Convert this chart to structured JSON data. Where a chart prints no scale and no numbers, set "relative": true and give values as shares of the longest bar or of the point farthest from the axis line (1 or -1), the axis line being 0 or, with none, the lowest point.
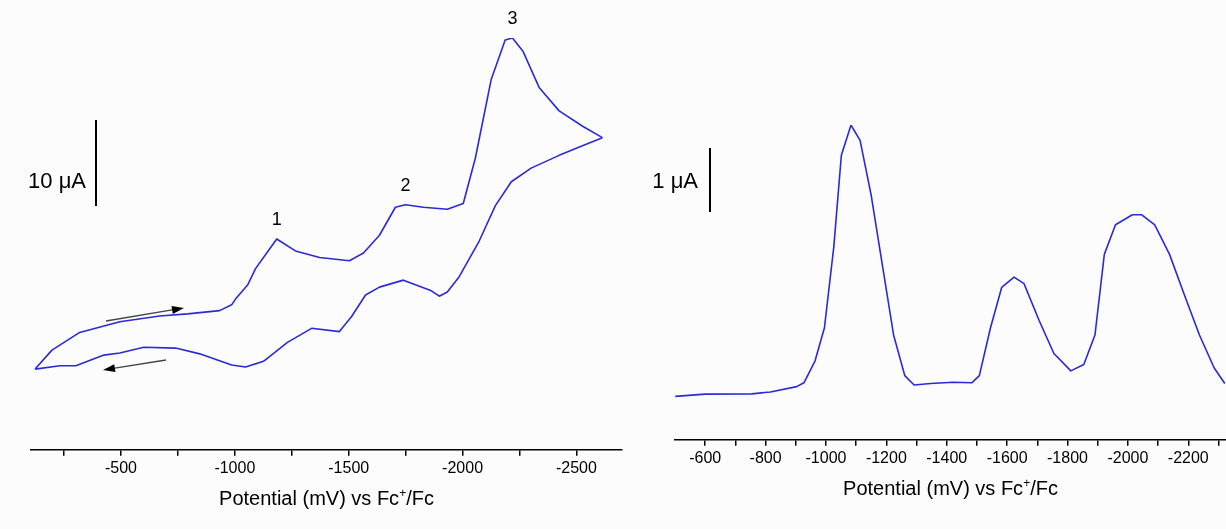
{
  "chart_data": [
    {
      "type": "line",
      "relative": true,
      "xlabel": "Potential (mV) vs Fc$^{+}$/Fc",
      "xlim": [
        -105,
        -2700
      ],
      "xticks": [
        {
          "value": -250,
          "label": null
        },
        -500,
        {
          "value": -750,
          "label": null
        },
        -1000,
        {
          "value": -1250,
          "label": null
        },
        -1500,
        {
          "value": -1750,
          "label": null
        },
        -2000,
        {
          "value": -2250,
          "label": null
        },
        -2500
      ],
      "marker": "none",
      "annotations": [
        "10 μA",
        {
          "text": "1",
          "x": -1184,
          "y": 0.512
        },
        {
          "text": "2",
          "x": -1749,
          "y": 0.595
        },
        {
          "text": "3",
          "x": -2219,
          "y": 1.0
        }
      ],
      "series": [
        {
          "color": "#2a2ad8",
          "x": [
            -123,
            -197,
            -319,
            -495,
            -670,
            -793,
            -933,
            -986,
            -1003,
            -1056,
            -1091,
            -1184,
            -1266,
            -1372,
            -1503,
            -1565,
            -1635,
            -1705,
            -1749,
            -1828,
            -1933,
            -2003,
            -2056,
            -2126,
            -2187,
            -2219,
            -2266,
            -2336,
            -2424,
            -2529,
            -2614
          ],
          "values": [
            0.196,
            0.242,
            0.285,
            0.311,
            0.325,
            0.33,
            0.338,
            0.352,
            0.366,
            0.4,
            0.44,
            0.512,
            0.483,
            0.467,
            0.459,
            0.478,
            0.521,
            0.589,
            0.595,
            0.589,
            0.584,
            0.598,
            0.708,
            0.9,
            0.995,
            1.0,
            0.967,
            0.88,
            0.823,
            0.785,
            0.758
          ]
        },
        {
          "color": "#2a2ad8",
          "x": [
            -2614,
            -2529,
            -2424,
            -2301,
            -2214,
            -2144,
            -2073,
            -1986,
            -1933,
            -1898,
            -1863,
            -1740,
            -1635,
            -1574,
            -1512,
            -1459,
            -1337,
            -1231,
            -1126,
            -1047,
            -986,
            -846,
            -740,
            -600,
            -495,
            -425,
            -302,
            -232,
            -123
          ],
          "values": [
            0.758,
            0.739,
            0.715,
            0.684,
            0.651,
            0.593,
            0.507,
            0.421,
            0.383,
            0.373,
            0.386,
            0.412,
            0.395,
            0.376,
            0.323,
            0.287,
            0.295,
            0.261,
            0.215,
            0.201,
            0.206,
            0.233,
            0.247,
            0.249,
            0.235,
            0.23,
            0.204,
            0.204,
            0.196
          ]
        }
      ]
    },
    {
      "type": "line",
      "relative": true,
      "xlabel": "Potential (mV) vs Fc$^{+}$/Fc",
      "xlim": [
        -500,
        -2325
      ],
      "xticks": [
        -600,
        {
          "value": -700,
          "label": null
        },
        -800,
        {
          "value": -900,
          "label": null
        },
        -1000,
        {
          "value": -1100,
          "label": null
        },
        -1200,
        {
          "value": -1300,
          "label": null
        },
        -1400,
        {
          "value": -1500,
          "label": null
        },
        -1600,
        {
          "value": -1700,
          "label": null
        },
        -1800,
        {
          "value": -1900,
          "label": null
        },
        -2000,
        {
          "value": -2100,
          "label": null
        },
        -2200,
        {
          "value": -2300,
          "label": null
        }
      ],
      "marker": "none",
      "annotations": [
        "1 μA"
      ],
      "series": [
        {
          "color": "#2a2ad8",
          "x": [
            -501,
            -600,
            -754,
            -816,
            -903,
            -927,
            -964,
            -995,
            -1026,
            -1051,
            -1083,
            -1113,
            -1150,
            -1187,
            -1224,
            -1261,
            -1292,
            -1347,
            -1421,
            -1483,
            -1508,
            -1545,
            -1582,
            -1623,
            -1656,
            -1706,
            -1755,
            -1811,
            -1854,
            -1891,
            -1922,
            -1959,
            -2015,
            -2045,
            -2089,
            -2138,
            -2187,
            -2237,
            -2286,
            -2321
          ],
          "values": [
            0.138,
            0.145,
            0.146,
            0.152,
            0.169,
            0.181,
            0.251,
            0.356,
            0.613,
            0.904,
            1.0,
            0.951,
            0.776,
            0.554,
            0.333,
            0.204,
            0.174,
            0.179,
            0.183,
            0.181,
            0.204,
            0.356,
            0.484,
            0.517,
            0.496,
            0.379,
            0.274,
            0.219,
            0.239,
            0.333,
            0.589,
            0.683,
            0.715,
            0.715,
            0.683,
            0.589,
            0.461,
            0.333,
            0.228,
            0.179
          ]
        }
      ]
    }
  ]
}
